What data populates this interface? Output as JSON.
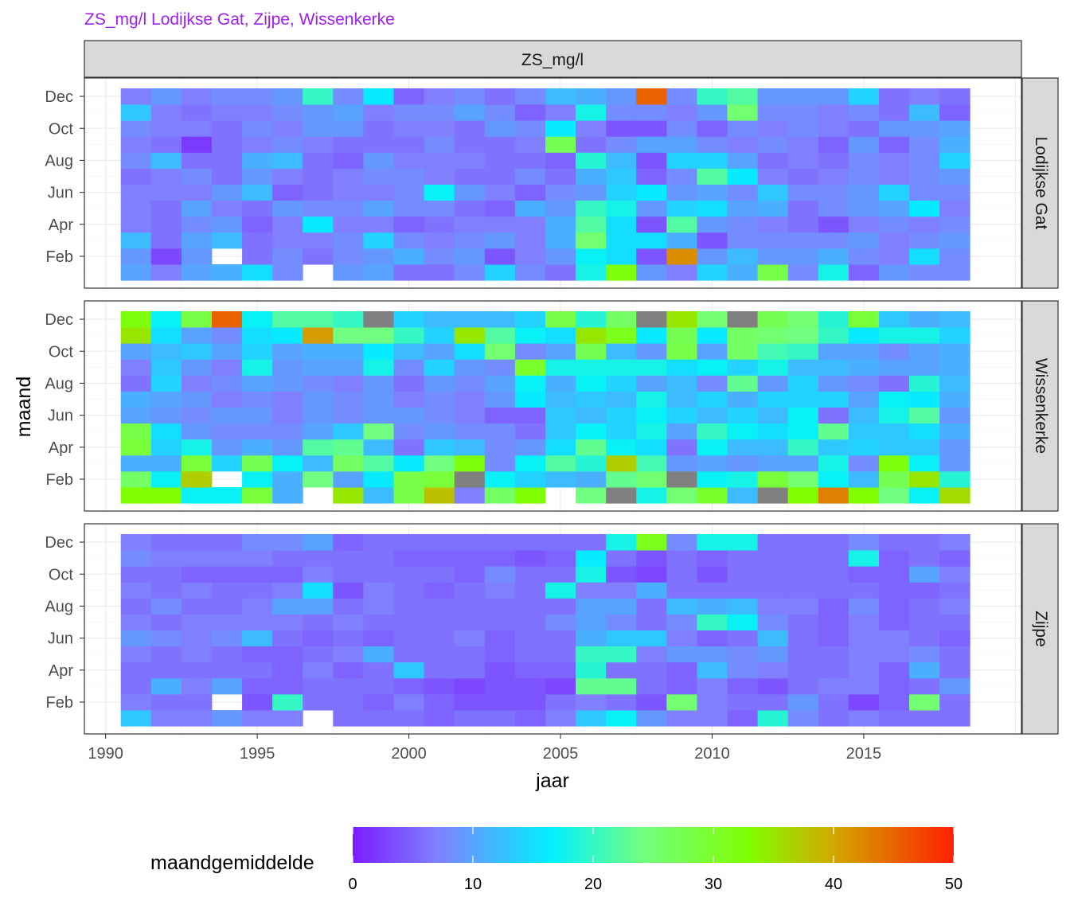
{
  "chart_data": {
    "type": "heatmap",
    "title": "ZS_mg/l Lodijkse Gat, Zijpe, Wissenkerke",
    "facet_column": "ZS_mg/l",
    "xlabel": "jaar",
    "ylabel": "maand",
    "x_ticks": [
      1990,
      1995,
      2000,
      2005,
      2010,
      2015
    ],
    "xlim": [
      1989.3,
      2020.2
    ],
    "y_ticks": [
      "Feb",
      "Apr",
      "Jun",
      "Aug",
      "Oct",
      "Dec"
    ],
    "years": [
      1991,
      1992,
      1993,
      1994,
      1995,
      1996,
      1997,
      1998,
      1999,
      2000,
      2001,
      2002,
      2003,
      2004,
      2005,
      2006,
      2007,
      2008,
      2009,
      2010,
      2011,
      2012,
      2013,
      2014,
      2015,
      2016,
      2017,
      2018
    ],
    "months": [
      "Jan",
      "Feb",
      "Mar",
      "Apr",
      "May",
      "Jun",
      "Jul",
      "Aug",
      "Sep",
      "Oct",
      "Nov",
      "Dec"
    ],
    "value_note": "values[month_index][year_index] in mg/l, estimated from colour; null = missing",
    "legend": {
      "title": "maandgemiddelde",
      "ticks": [
        0,
        10,
        20,
        30,
        40,
        50
      ],
      "range": [
        0,
        50
      ],
      "na_color": "#808080"
    },
    "panels": [
      {
        "name": "Lodijkse Gat",
        "values": [
          [
            10,
            7,
            10,
            11,
            15,
            8,
            null,
            9,
            10,
            6,
            6,
            8,
            14,
            8,
            6,
            18,
            32,
            9,
            7,
            14,
            11,
            28,
            8,
            18,
            5,
            9,
            8,
            8
          ],
          [
            9,
            3,
            9,
            null,
            6,
            8,
            6,
            8,
            9,
            11,
            8,
            9,
            4,
            7,
            9,
            17,
            15,
            4,
            42,
            9,
            12,
            9,
            9,
            11,
            8,
            7,
            15,
            8
          ],
          [
            12,
            6,
            10,
            12,
            6,
            7,
            7,
            8,
            14,
            8,
            7,
            8,
            9,
            7,
            11,
            25,
            15,
            15,
            11,
            4,
            8,
            8,
            8,
            8,
            9,
            7,
            8,
            9
          ],
          [
            7,
            6,
            8,
            9,
            5,
            7,
            16,
            7,
            7,
            5,
            6,
            7,
            7,
            7,
            11,
            22,
            15,
            4,
            22,
            9,
            8,
            7,
            6,
            4,
            7,
            8,
            7,
            8
          ],
          [
            7,
            6,
            10,
            7,
            6,
            9,
            8,
            8,
            10,
            8,
            8,
            6,
            5,
            11,
            9,
            20,
            18,
            9,
            14,
            15,
            10,
            11,
            6,
            8,
            9,
            10,
            16,
            7
          ],
          [
            7,
            7,
            7,
            9,
            12,
            5,
            6,
            7,
            7,
            8,
            17,
            9,
            7,
            5,
            8,
            9,
            14,
            16,
            9,
            10,
            8,
            13,
            8,
            8,
            9,
            14,
            8,
            8
          ],
          [
            6,
            7,
            8,
            6,
            9,
            7,
            6,
            7,
            8,
            8,
            7,
            6,
            6,
            8,
            6,
            11,
            13,
            5,
            8,
            22,
            16,
            7,
            6,
            7,
            8,
            7,
            8,
            9
          ],
          [
            8,
            12,
            6,
            6,
            11,
            12,
            6,
            5,
            9,
            7,
            7,
            7,
            6,
            6,
            5,
            19,
            12,
            4,
            14,
            14,
            10,
            6,
            7,
            6,
            8,
            7,
            8,
            14
          ],
          [
            7,
            6,
            2,
            6,
            7,
            8,
            7,
            6,
            6,
            6,
            8,
            6,
            6,
            7,
            27,
            6,
            8,
            10,
            10,
            8,
            7,
            8,
            7,
            5,
            9,
            5,
            8,
            11
          ],
          [
            8,
            7,
            7,
            6,
            8,
            7,
            9,
            9,
            6,
            7,
            7,
            6,
            9,
            8,
            16,
            7,
            4,
            4,
            8,
            5,
            8,
            7,
            8,
            7,
            6,
            9,
            9,
            10
          ],
          [
            13,
            7,
            6,
            7,
            7,
            8,
            9,
            10,
            7,
            8,
            8,
            10,
            8,
            5,
            7,
            18,
            8,
            8,
            7,
            9,
            25,
            8,
            8,
            7,
            8,
            6,
            12,
            5
          ],
          [
            7,
            9,
            7,
            8,
            8,
            9,
            20,
            8,
            16,
            5,
            7,
            8,
            6,
            8,
            12,
            11,
            9,
            45,
            8,
            20,
            22,
            9,
            9,
            9,
            14,
            6,
            7,
            6
          ]
        ]
      },
      {
        "name": "Wissenkerke",
        "values": [
          [
            33,
            33,
            17,
            17,
            29,
            11,
            null,
            35,
            12,
            28,
            38,
            7,
            26,
            33,
            null,
            24,
            null,
            18,
            25,
            30,
            12,
            null,
            33,
            43,
            33,
            24,
            17,
            36
          ],
          [
            26,
            17,
            37,
            null,
            17,
            11,
            24,
            10,
            16,
            28,
            29,
            null,
            17,
            14,
            12,
            11,
            23,
            25,
            null,
            17,
            18,
            29,
            25,
            17,
            12,
            27,
            35,
            19
          ],
          [
            11,
            11,
            29,
            14,
            27,
            17,
            12,
            26,
            22,
            16,
            24,
            32,
            8,
            17,
            22,
            19,
            37,
            21,
            9,
            10,
            9,
            10,
            10,
            18,
            8,
            32,
            17,
            9
          ],
          [
            29,
            14,
            18,
            9,
            11,
            9,
            22,
            23,
            12,
            6,
            13,
            12,
            8,
            9,
            15,
            23,
            17,
            15,
            6,
            17,
            12,
            12,
            20,
            13,
            14,
            13,
            13,
            9
          ],
          [
            28,
            15,
            9,
            8,
            8,
            8,
            10,
            13,
            24,
            8,
            9,
            8,
            8,
            6,
            13,
            17,
            14,
            18,
            10,
            20,
            17,
            15,
            17,
            23,
            13,
            13,
            15,
            11
          ],
          [
            10,
            9,
            8,
            9,
            9,
            7,
            9,
            8,
            9,
            9,
            8,
            7,
            5,
            5,
            13,
            12,
            14,
            17,
            14,
            12,
            14,
            12,
            17,
            6,
            12,
            18,
            22,
            9
          ],
          [
            11,
            10,
            9,
            7,
            8,
            7,
            9,
            8,
            9,
            7,
            8,
            7,
            9,
            16,
            12,
            13,
            12,
            18,
            12,
            14,
            11,
            14,
            14,
            14,
            10,
            17,
            16,
            11
          ],
          [
            6,
            14,
            7,
            8,
            10,
            9,
            8,
            7,
            9,
            6,
            9,
            8,
            10,
            17,
            11,
            17,
            14,
            10,
            12,
            8,
            23,
            9,
            14,
            9,
            8,
            6,
            19,
            12
          ],
          [
            7,
            13,
            9,
            7,
            18,
            9,
            10,
            10,
            18,
            8,
            14,
            9,
            8,
            30,
            18,
            18,
            18,
            18,
            15,
            17,
            14,
            18,
            12,
            12,
            11,
            10,
            10,
            11
          ],
          [
            10,
            12,
            13,
            10,
            14,
            10,
            11,
            11,
            16,
            12,
            10,
            15,
            25,
            8,
            10,
            27,
            12,
            9,
            28,
            10,
            26,
            21,
            20,
            10,
            10,
            8,
            10,
            11
          ],
          [
            35,
            15,
            10,
            8,
            15,
            16,
            41,
            24,
            24,
            20,
            14,
            35,
            22,
            17,
            15,
            35,
            31,
            16,
            27,
            16,
            26,
            25,
            24,
            20,
            16,
            18,
            18,
            14
          ],
          [
            32,
            17,
            28,
            45,
            17,
            22,
            22,
            20,
            null,
            14,
            12,
            12,
            12,
            14,
            28,
            19,
            26,
            null,
            35,
            25,
            null,
            27,
            25,
            19,
            29,
            13,
            11,
            12
          ]
        ]
      },
      {
        "name": "Zijpe",
        "values": [
          [
            13,
            7,
            7,
            9,
            7,
            7,
            null,
            6,
            6,
            6,
            5,
            6,
            6,
            5,
            7,
            13,
            17,
            9,
            7,
            7,
            5,
            19,
            8,
            6,
            7,
            6,
            6,
            6
          ],
          [
            7,
            6,
            6,
            null,
            4,
            20,
            6,
            6,
            5,
            7,
            5,
            4,
            4,
            4,
            6,
            7,
            6,
            4,
            25,
            7,
            6,
            6,
            9,
            6,
            3,
            5,
            25,
            6
          ],
          [
            6,
            11,
            7,
            10,
            5,
            5,
            6,
            6,
            6,
            5,
            4,
            3,
            4,
            4,
            3,
            23,
            23,
            6,
            5,
            7,
            5,
            4,
            6,
            7,
            7,
            5,
            6,
            9
          ],
          [
            6,
            6,
            6,
            6,
            6,
            5,
            7,
            5,
            6,
            13,
            6,
            6,
            4,
            5,
            5,
            19,
            6,
            6,
            5,
            12,
            8,
            7,
            6,
            6,
            7,
            5,
            11,
            6
          ],
          [
            7,
            6,
            7,
            6,
            5,
            5,
            6,
            7,
            11,
            6,
            6,
            6,
            5,
            6,
            6,
            20,
            20,
            7,
            9,
            9,
            8,
            9,
            6,
            6,
            7,
            7,
            8,
            6
          ],
          [
            9,
            8,
            7,
            8,
            12,
            6,
            5,
            6,
            5,
            6,
            6,
            7,
            5,
            6,
            6,
            11,
            13,
            13,
            7,
            5,
            6,
            12,
            6,
            5,
            7,
            7,
            6,
            5
          ],
          [
            7,
            6,
            7,
            7,
            7,
            7,
            6,
            7,
            6,
            6,
            6,
            6,
            6,
            6,
            8,
            10,
            8,
            6,
            8,
            20,
            17,
            8,
            6,
            5,
            7,
            5,
            6,
            6
          ],
          [
            6,
            8,
            6,
            6,
            7,
            10,
            10,
            6,
            7,
            6,
            6,
            6,
            6,
            6,
            6,
            10,
            10,
            6,
            12,
            11,
            12,
            7,
            7,
            5,
            8,
            5,
            6,
            7
          ],
          [
            7,
            6,
            7,
            6,
            6,
            7,
            15,
            4,
            7,
            6,
            5,
            6,
            7,
            6,
            18,
            7,
            7,
            11,
            6,
            6,
            6,
            6,
            6,
            6,
            6,
            5,
            5,
            6
          ],
          [
            6,
            6,
            5,
            5,
            5,
            5,
            7,
            6,
            6,
            6,
            6,
            5,
            8,
            6,
            6,
            18,
            4,
            3,
            6,
            4,
            6,
            6,
            6,
            6,
            5,
            5,
            10,
            7
          ],
          [
            8,
            7,
            7,
            7,
            7,
            6,
            6,
            6,
            6,
            5,
            5,
            5,
            5,
            4,
            5,
            16,
            6,
            4,
            6,
            5,
            6,
            6,
            6,
            6,
            18,
            5,
            6,
            5
          ],
          [
            7,
            6,
            6,
            6,
            8,
            8,
            10,
            5,
            6,
            6,
            6,
            6,
            6,
            6,
            6,
            6,
            18,
            31,
            8,
            18,
            18,
            6,
            6,
            6,
            8,
            6,
            6,
            7
          ]
        ]
      }
    ]
  }
}
